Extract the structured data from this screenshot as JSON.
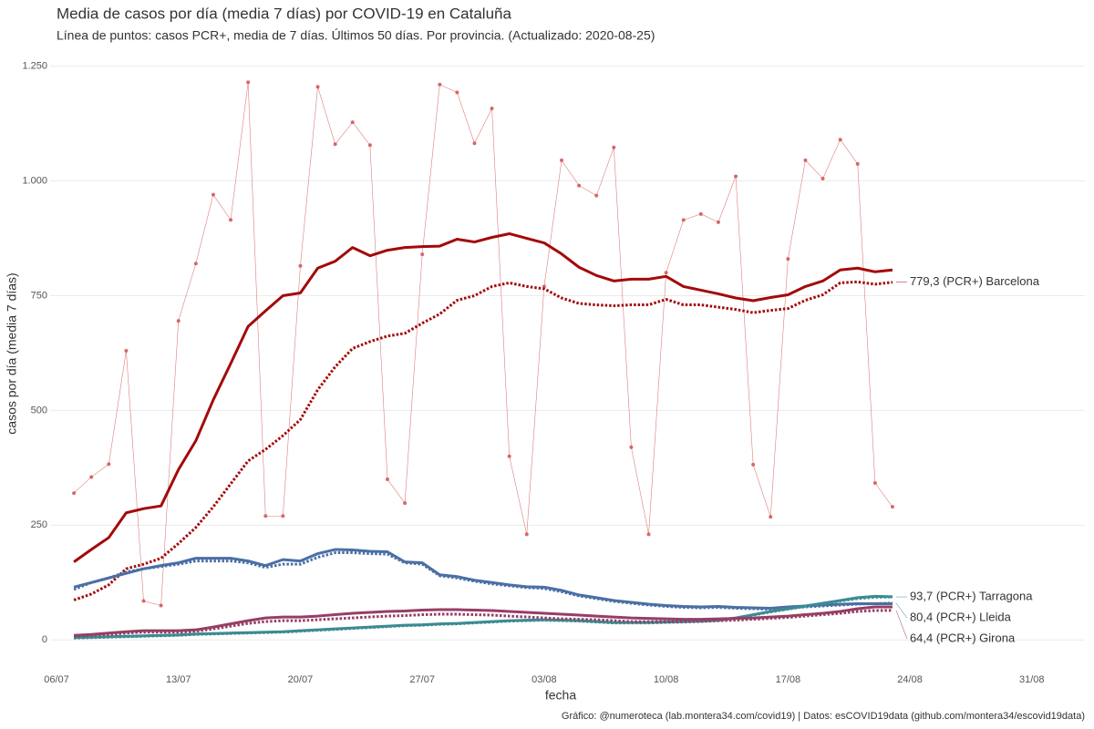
{
  "chart_data": {
    "type": "line",
    "title": "Media de casos por día (media 7 días) por COVID-19 en Cataluña",
    "subtitle": "Línea de puntos: casos PCR+, media de 7 días. Últimos 50 días. Por provincia. (Actualizado: 2020-08-25)",
    "x_label": "fecha",
    "y_label": "casos por día (media 7 días)",
    "caption": "Gráfico: @numeroteca (lab.montera34.com/covid19) | Datos: esCOVID19data (github.com/montera34/escovid19data)",
    "x": [
      "07/07",
      "08/07",
      "09/07",
      "10/07",
      "11/07",
      "12/07",
      "13/07",
      "14/07",
      "15/07",
      "16/07",
      "17/07",
      "18/07",
      "19/07",
      "20/07",
      "21/07",
      "22/07",
      "23/07",
      "24/07",
      "25/07",
      "26/07",
      "27/07",
      "28/07",
      "29/07",
      "30/07",
      "31/07",
      "01/08",
      "02/08",
      "03/08",
      "04/08",
      "05/08",
      "06/08",
      "07/08",
      "08/08",
      "09/08",
      "10/08",
      "11/08",
      "12/08",
      "13/08",
      "14/08",
      "15/08",
      "16/08",
      "17/08",
      "18/08",
      "19/08",
      "20/08",
      "21/08",
      "22/08",
      "23/08"
    ],
    "xlim": [
      "06/07",
      "02/09"
    ],
    "xticks": [
      "06/07",
      "13/07",
      "20/07",
      "27/07",
      "03/08",
      "10/08",
      "17/08",
      "24/08",
      "31/08"
    ],
    "ylim": [
      -65,
      1285
    ],
    "yticks": [
      0,
      250,
      500,
      750,
      {
        "value": 1000,
        "label": "1.000"
      },
      {
        "value": 1250,
        "label": "1.250"
      }
    ],
    "grid": true,
    "series": [
      {
        "style": "points",
        "color": "#d0474a",
        "values": [
          320,
          355,
          383,
          630,
          85,
          75,
          695,
          820,
          970,
          915,
          1215,
          270,
          270,
          815,
          1205,
          1080,
          1128,
          1078,
          350,
          298,
          840,
          1210,
          1193,
          1082,
          1158,
          400,
          230,
          770,
          1045,
          990,
          968,
          1073,
          420,
          230,
          800,
          915,
          928,
          910,
          1010,
          382,
          268,
          830,
          1045,
          1005,
          1090,
          1037,
          342,
          290
        ]
      },
      {
        "style": "solid",
        "color": "#a30a0a",
        "values": [
          170,
          197,
          223,
          277,
          286,
          292,
          371,
          434,
          523,
          602,
          683,
          717,
          750,
          756,
          810,
          825,
          855,
          837,
          849,
          855,
          857,
          858,
          873,
          867,
          877,
          885,
          875,
          865,
          841,
          812,
          794,
          782,
          786,
          786,
          792,
          770,
          762,
          754,
          745,
          739,
          746,
          752,
          770,
          782,
          806,
          810,
          802,
          806
        ]
      },
      {
        "style": "dotted",
        "color": "#a30a0a",
        "label": "779,3 (PCR+) Barcelona",
        "values": [
          87,
          100,
          120,
          155,
          165,
          178,
          210,
          245,
          290,
          340,
          390,
          415,
          445,
          480,
          545,
          595,
          635,
          650,
          662,
          668,
          690,
          710,
          740,
          750,
          770,
          778,
          770,
          765,
          745,
          733,
          730,
          728,
          730,
          730,
          742,
          730,
          730,
          725,
          720,
          713,
          718,
          722,
          740,
          752,
          778,
          780,
          775,
          779.3
        ]
      },
      {
        "style": "solid",
        "color": "#4a6fa5",
        "values": [
          115,
          125,
          135,
          145,
          155,
          162,
          168,
          178,
          178,
          178,
          172,
          162,
          175,
          172,
          188,
          197,
          196,
          193,
          192,
          170,
          168,
          142,
          138,
          130,
          125,
          120,
          116,
          115,
          108,
          98,
          92,
          86,
          82,
          78,
          75,
          73,
          72,
          73,
          71,
          70,
          69,
          72,
          74,
          76,
          78,
          79,
          79,
          79
        ]
      },
      {
        "style": "dotted",
        "color": "#4a6fa5",
        "label": "80,4 (PCR+) Lleida",
        "values": [
          110,
          125,
          135,
          148,
          155,
          160,
          165,
          172,
          172,
          172,
          168,
          158,
          165,
          165,
          180,
          190,
          190,
          188,
          187,
          168,
          165,
          140,
          135,
          128,
          122,
          118,
          114,
          112,
          105,
          96,
          90,
          84,
          80,
          76,
          73,
          71,
          70,
          71,
          69,
          68,
          67,
          70,
          72,
          74,
          76,
          78,
          79,
          80.4
        ]
      },
      {
        "style": "solid",
        "color": "#3b8b93",
        "values": [
          5,
          6,
          7,
          8,
          9,
          10,
          11,
          13,
          14,
          15,
          16,
          17,
          18,
          20,
          22,
          24,
          26,
          28,
          30,
          32,
          33,
          35,
          36,
          38,
          40,
          42,
          43,
          44,
          43,
          42,
          40,
          38,
          38,
          38,
          39,
          40,
          41,
          43,
          48,
          55,
          62,
          68,
          74,
          80,
          86,
          92,
          95,
          94
        ]
      },
      {
        "style": "dotted",
        "color": "#3b8b93",
        "label": "93,7 (PCR+) Tarragona",
        "values": [
          4,
          5,
          6,
          7,
          8,
          9,
          10,
          12,
          13,
          14,
          15,
          16,
          17,
          19,
          21,
          23,
          25,
          27,
          29,
          31,
          32,
          34,
          35,
          37,
          39,
          41,
          42,
          43,
          42,
          41,
          39,
          37,
          37,
          37,
          38,
          39,
          40,
          42,
          47,
          54,
          61,
          67,
          73,
          79,
          85,
          90,
          93,
          93.7
        ]
      },
      {
        "style": "solid",
        "color": "#963e65",
        "values": [
          10,
          12,
          15,
          18,
          20,
          20,
          20,
          22,
          28,
          35,
          42,
          48,
          50,
          50,
          52,
          55,
          58,
          60,
          62,
          63,
          65,
          66,
          66,
          65,
          64,
          62,
          60,
          58,
          56,
          54,
          52,
          50,
          48,
          47,
          46,
          45,
          45,
          46,
          47,
          48,
          50,
          52,
          55,
          58,
          62,
          68,
          72,
          72
        ]
      },
      {
        "style": "dotted",
        "color": "#963e65",
        "label": "64,4 (PCR+) Girona",
        "values": [
          8,
          10,
          12,
          15,
          17,
          17,
          17,
          19,
          24,
          30,
          36,
          40,
          42,
          42,
          44,
          46,
          48,
          50,
          52,
          53,
          55,
          56,
          56,
          55,
          54,
          52,
          50,
          48,
          46,
          45,
          44,
          42,
          40,
          40,
          40,
          40,
          41,
          42,
          43,
          45,
          47,
          49,
          52,
          55,
          58,
          62,
          64,
          64.4
        ]
      }
    ]
  }
}
